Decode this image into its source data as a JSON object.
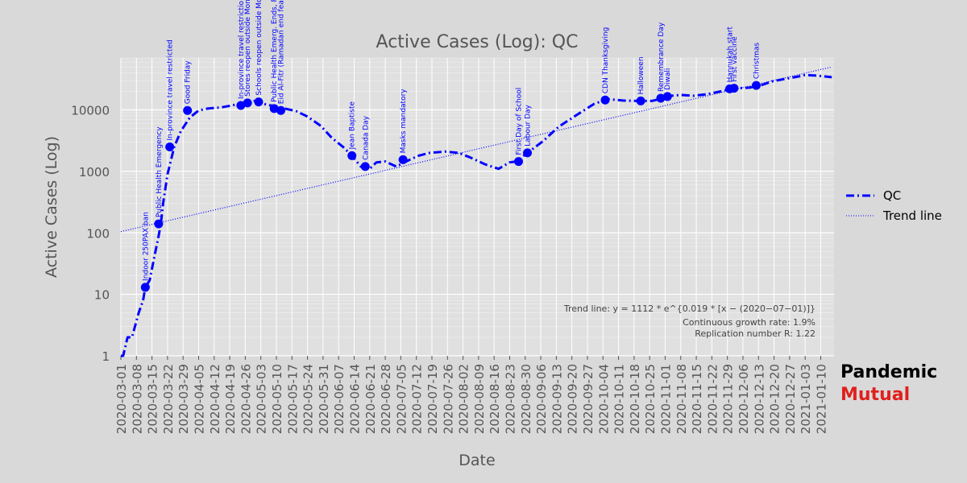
{
  "colors": {
    "background": "#d9d9d9",
    "plot_background": "#e0e0e0",
    "grid": "#ffffff",
    "series": "#0000ff",
    "text": "#555555",
    "brand_primary": "#000000",
    "brand_accent": "#e0201c"
  },
  "brand": {
    "line1": "Pandemic",
    "line2": "Mutual"
  },
  "chart_data": {
    "type": "line",
    "title": "Active Cases (Log): QC",
    "xlabel": "Date",
    "ylabel": "Active Cases (Log)",
    "y_scale": "log",
    "ylim": [
      1,
      70000
    ],
    "xlim": [
      "2020-03-01",
      "2021-01-16"
    ],
    "grid": true,
    "legend_position": "right",
    "x_ticks": [
      "2020-03-01",
      "2020-03-08",
      "2020-03-15",
      "2020-03-22",
      "2020-03-29",
      "2020-04-05",
      "2020-04-12",
      "2020-04-19",
      "2020-04-26",
      "2020-05-03",
      "2020-05-10",
      "2020-05-17",
      "2020-05-24",
      "2020-05-31",
      "2020-06-07",
      "2020-06-14",
      "2020-06-21",
      "2020-06-28",
      "2020-07-05",
      "2020-07-12",
      "2020-07-19",
      "2020-07-26",
      "2020-08-02",
      "2020-08-09",
      "2020-08-16",
      "2020-08-23",
      "2020-08-30",
      "2020-09-06",
      "2020-09-13",
      "2020-09-20",
      "2020-09-27",
      "2020-10-04",
      "2020-10-11",
      "2020-10-18",
      "2020-10-25",
      "2020-11-01",
      "2020-11-08",
      "2020-11-15",
      "2020-11-22",
      "2020-11-29",
      "2020-12-06",
      "2020-12-13",
      "2020-12-20",
      "2020-12-27",
      "2021-01-03",
      "2021-01-10"
    ],
    "y_ticks": [
      {
        "value": 1,
        "label": "1"
      },
      {
        "value": 10,
        "label": "10"
      },
      {
        "value": 100,
        "label": "100"
      },
      {
        "value": 1000,
        "label": "1000"
      },
      {
        "value": 10000,
        "label": "10000"
      }
    ],
    "series": [
      {
        "name": "QC",
        "style": "dash-dot",
        "points": [
          [
            "2020-03-01",
            1
          ],
          [
            "2020-03-02",
            1
          ],
          [
            "2020-03-04",
            2
          ],
          [
            "2020-03-06",
            2
          ],
          [
            "2020-03-09",
            5
          ],
          [
            "2020-03-11",
            8
          ],
          [
            "2020-03-12",
            13
          ],
          [
            "2020-03-14",
            17
          ],
          [
            "2020-03-16",
            40
          ],
          [
            "2020-03-18",
            90
          ],
          [
            "2020-03-19",
            140
          ],
          [
            "2020-03-20",
            300
          ],
          [
            "2020-03-22",
            900
          ],
          [
            "2020-03-25",
            2500
          ],
          [
            "2020-03-28",
            4500
          ],
          [
            "2020-04-01",
            7500
          ],
          [
            "2020-04-05",
            9800
          ],
          [
            "2020-04-09",
            10500
          ],
          [
            "2020-04-15",
            11000
          ],
          [
            "2020-04-20",
            11800
          ],
          [
            "2020-04-25",
            13000
          ],
          [
            "2020-04-30",
            14000
          ],
          [
            "2020-05-03",
            13000
          ],
          [
            "2020-05-06",
            12000
          ],
          [
            "2020-05-10",
            11500
          ],
          [
            "2020-05-14",
            10500
          ],
          [
            "2020-05-19",
            9500
          ],
          [
            "2020-05-24",
            7800
          ],
          [
            "2020-05-30",
            5500
          ],
          [
            "2020-06-04",
            3500
          ],
          [
            "2020-06-09",
            2500
          ],
          [
            "2020-06-13",
            1800
          ],
          [
            "2020-06-17",
            1200
          ],
          [
            "2020-06-21",
            1100
          ],
          [
            "2020-06-24",
            1400
          ],
          [
            "2020-06-28",
            1450
          ],
          [
            "2020-07-03",
            1200
          ],
          [
            "2020-07-09",
            1550
          ],
          [
            "2020-07-13",
            1800
          ],
          [
            "2020-07-18",
            2000
          ],
          [
            "2020-07-25",
            2100
          ],
          [
            "2020-07-31",
            2000
          ],
          [
            "2020-08-05",
            1700
          ],
          [
            "2020-08-12",
            1300
          ],
          [
            "2020-08-18",
            1100
          ],
          [
            "2020-08-23",
            1400
          ],
          [
            "2020-08-26",
            1450
          ],
          [
            "2020-08-31",
            2000
          ],
          [
            "2020-09-07",
            3100
          ],
          [
            "2020-09-14",
            5300
          ],
          [
            "2020-09-22",
            8200
          ],
          [
            "2020-09-30",
            12500
          ],
          [
            "2020-10-06",
            15000
          ],
          [
            "2020-10-13",
            14200
          ],
          [
            "2020-10-20",
            14000
          ],
          [
            "2020-10-26",
            14000
          ],
          [
            "2020-10-31",
            15500
          ],
          [
            "2020-11-04",
            17000
          ],
          [
            "2020-11-08",
            17500
          ],
          [
            "2020-11-14",
            17000
          ],
          [
            "2020-11-20",
            18000
          ],
          [
            "2020-11-26",
            20000
          ],
          [
            "2020-12-01",
            22000
          ],
          [
            "2020-12-04",
            22500
          ],
          [
            "2020-12-09",
            23000
          ],
          [
            "2020-12-14",
            25000
          ],
          [
            "2020-12-19",
            29000
          ],
          [
            "2020-12-25",
            32000
          ],
          [
            "2020-12-31",
            35000
          ],
          [
            "2021-01-03",
            37000
          ],
          [
            "2021-01-09",
            36000
          ],
          [
            "2021-01-15",
            34000
          ]
        ]
      },
      {
        "name": "Trend line",
        "style": "dotted",
        "points": [
          [
            "2020-03-01",
            105
          ],
          [
            "2021-01-15",
            50000
          ]
        ]
      }
    ],
    "markers": [
      {
        "date": "2020-03-12",
        "value": 13,
        "label": "Indoor 250PAX ban"
      },
      {
        "date": "2020-03-18",
        "value": 140,
        "label": "Public Health Emergency"
      },
      {
        "date": "2020-03-23",
        "value": 2500,
        "label": "In-province travel restricted"
      },
      {
        "date": "2020-03-31",
        "value": 9800,
        "label": "Good Friday"
      },
      {
        "date": "2020-04-24",
        "value": 11800,
        "label": "In-province travel restrictions"
      },
      {
        "date": "2020-04-27",
        "value": 13000,
        "label": "Stores reopen outside Montr"
      },
      {
        "date": "2020-05-02",
        "value": 13500,
        "label": "Schools reopen outside Mon"
      },
      {
        "date": "2020-05-09",
        "value": 10500,
        "label": "Public Health Emerg. Ends, Pa"
      },
      {
        "date": "2020-05-12",
        "value": 9800,
        "label": "Eid Al-Fitr (Ramadan end feast)"
      },
      {
        "date": "2020-06-13",
        "value": 1800,
        "label": "Jean Baptiste"
      },
      {
        "date": "2020-06-19",
        "value": 1200,
        "label": "Canada Day"
      },
      {
        "date": "2020-07-06",
        "value": 1550,
        "label": "Masks mandatory"
      },
      {
        "date": "2020-08-27",
        "value": 1450,
        "label": "First Day of School"
      },
      {
        "date": "2020-08-31",
        "value": 2000,
        "label": "Labour Day"
      },
      {
        "date": "2020-10-05",
        "value": 14500,
        "label": "CDN Thanksgiving"
      },
      {
        "date": "2020-10-21",
        "value": 14000,
        "label": "Halloween"
      },
      {
        "date": "2020-10-30",
        "value": 15500,
        "label": "Remembrance Day"
      },
      {
        "date": "2020-11-02",
        "value": 16500,
        "label": "Diwali"
      },
      {
        "date": "2020-11-30",
        "value": 22000,
        "label": "Hannukah start"
      },
      {
        "date": "2020-12-02",
        "value": 22500,
        "label": "First vaccine"
      },
      {
        "date": "2020-12-12",
        "value": 25000,
        "label": "Christmas"
      }
    ],
    "annotations": {
      "trend_formula": "Trend line: y = 1112 * e^{0.019 * [x − (2020−07−01)]}",
      "growth_rate": "Continuous growth rate: 1.9%",
      "replication": "Replication number R: 1.22"
    }
  }
}
